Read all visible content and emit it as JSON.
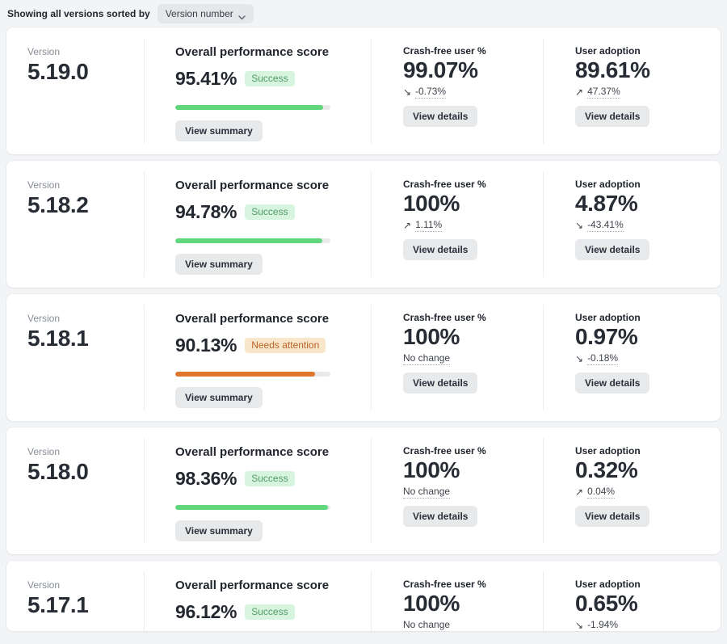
{
  "header": {
    "label": "Showing all versions sorted by",
    "sort_dropdown": {
      "value": "Version number"
    }
  },
  "labels": {
    "version": "Version",
    "overall": "Overall performance score",
    "crash_free": "Crash-free user %",
    "user_adoption": "User adoption"
  },
  "buttons": {
    "view_summary": "View summary",
    "view_details": "View details"
  },
  "icons": {
    "trend_up": "↗",
    "trend_down": "↘",
    "chevron_down": "⌄"
  },
  "colors": {
    "success_badge_bg": "#d7f4de",
    "success_badge_text": "#519a66",
    "warning_badge_bg": "#f7e6ca",
    "warning_badge_text": "#bc6226",
    "bar_success": "#5fd77a",
    "bar_warning": "#e0762b",
    "bar_track": "#e8e9eb",
    "page_bg": "#f3f4f6"
  },
  "cards": [
    {
      "version": "5.19.0",
      "score": "95.41%",
      "score_value": 95.41,
      "badge": "Success",
      "badge_type": "success",
      "crash_free": {
        "value": "99.07%",
        "trend": "down",
        "change": "-0.73%"
      },
      "adoption": {
        "value": "89.61%",
        "trend": "up",
        "change": "47.37%"
      }
    },
    {
      "version": "5.18.2",
      "score": "94.78%",
      "score_value": 94.78,
      "badge": "Success",
      "badge_type": "success",
      "crash_free": {
        "value": "100%",
        "trend": "up",
        "change": "1.11%"
      },
      "adoption": {
        "value": "4.87%",
        "trend": "down",
        "change": "-43.41%"
      }
    },
    {
      "version": "5.18.1",
      "score": "90.13%",
      "score_value": 90.13,
      "badge": "Needs attention",
      "badge_type": "warning",
      "crash_free": {
        "value": "100%",
        "trend": "none",
        "change": "No change"
      },
      "adoption": {
        "value": "0.97%",
        "trend": "down",
        "change": "-0.18%"
      }
    },
    {
      "version": "5.18.0",
      "score": "98.36%",
      "score_value": 98.36,
      "badge": "Success",
      "badge_type": "success",
      "crash_free": {
        "value": "100%",
        "trend": "none",
        "change": "No change"
      },
      "adoption": {
        "value": "0.32%",
        "trend": "up",
        "change": "0.04%"
      }
    },
    {
      "version": "5.17.1",
      "score": "96.12%",
      "score_value": 96.12,
      "badge": "Success",
      "badge_type": "success",
      "crash_free": {
        "value": "100%",
        "trend": "none",
        "change": "No change"
      },
      "adoption": {
        "value": "0.65%",
        "trend": "down",
        "change": "-1.94%"
      }
    }
  ]
}
